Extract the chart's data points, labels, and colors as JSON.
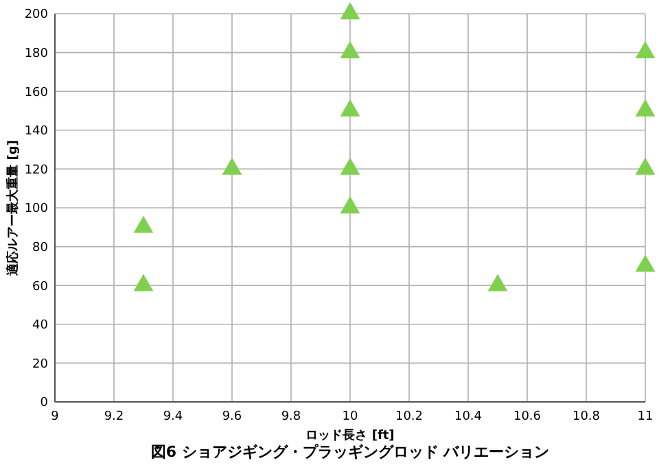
{
  "chart_data": {
    "type": "scatter",
    "title": "図6 ショアジギング・プラッギングロッド バリエーション",
    "xlabel": "ロッド長さ [ft]",
    "ylabel": "適応ルアー最大重量 [g]",
    "x": [
      9.3,
      9.3,
      9.6,
      10,
      10,
      10,
      10,
      10,
      10.5,
      11,
      11,
      11,
      11
    ],
    "series": [
      {
        "color": "#80d050",
        "values": [
          90,
          60,
          120,
          200,
          180,
          150,
          120,
          100,
          60,
          180,
          150,
          120,
          70
        ]
      }
    ],
    "xlim": [
      9,
      11
    ],
    "xticks": [
      9,
      9.2,
      9.4,
      9.6,
      9.8,
      10,
      10.2,
      10.4,
      10.6,
      10.8,
      11
    ],
    "ylim": [
      0,
      200
    ],
    "yticks": [
      0,
      20,
      40,
      60,
      80,
      100,
      120,
      140,
      160,
      180,
      200
    ],
    "grid": true,
    "marker": "triangle"
  }
}
